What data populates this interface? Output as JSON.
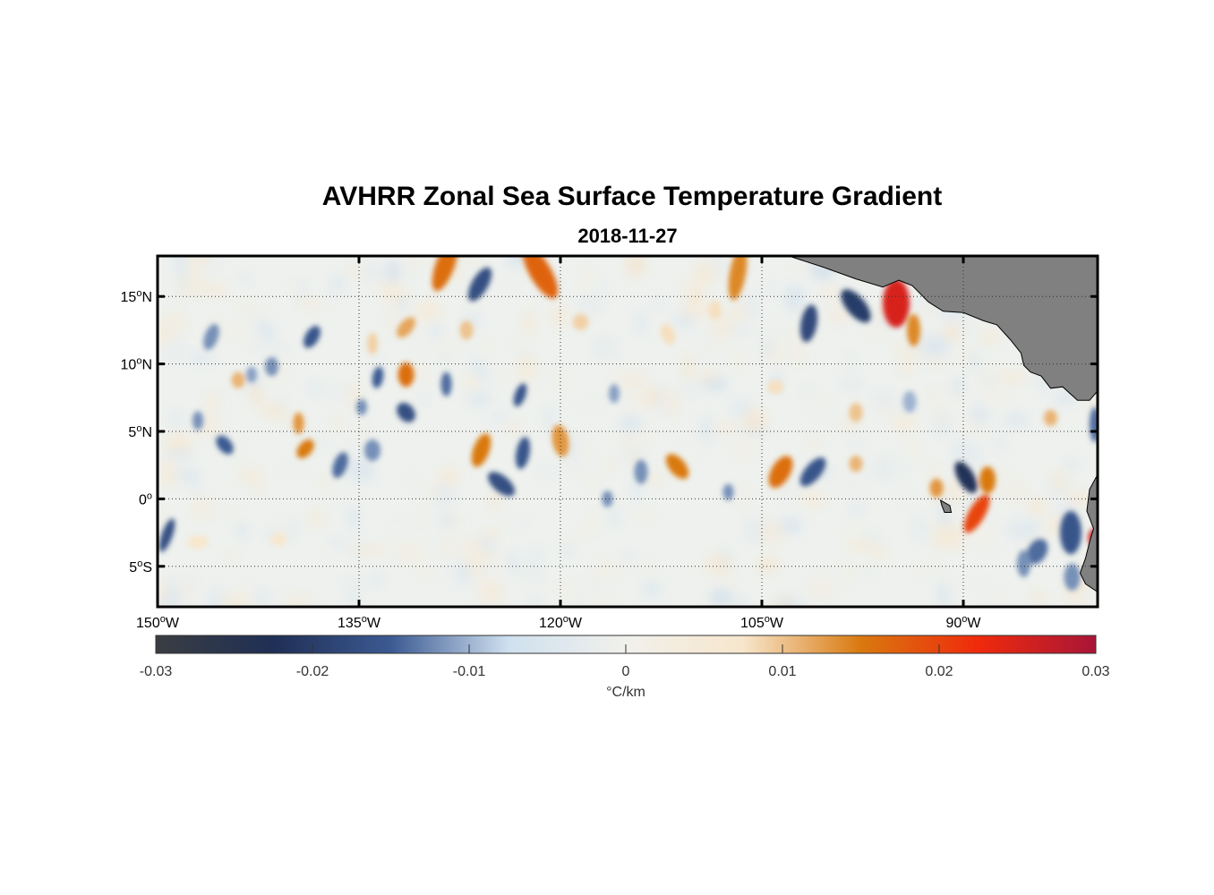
{
  "title": "AVHRR Zonal Sea Surface Temperature Gradient",
  "subtitle": "2018-11-27",
  "chart_data": {
    "type": "heatmap",
    "title": "AVHRR Zonal Sea Surface Temperature Gradient",
    "subtitle": "2018-11-27",
    "xlim": [
      -150,
      -80
    ],
    "ylim": [
      -8,
      18
    ],
    "x_ticks": [
      {
        "value": -150,
        "num": "150",
        "hemi": "W"
      },
      {
        "value": -135,
        "num": "135",
        "hemi": "W"
      },
      {
        "value": -120,
        "num": "120",
        "hemi": "W"
      },
      {
        "value": -105,
        "num": "105",
        "hemi": "W"
      },
      {
        "value": -90,
        "num": "90",
        "hemi": "W"
      }
    ],
    "y_ticks": [
      {
        "value": 15,
        "num": "15",
        "hemi": "N"
      },
      {
        "value": 10,
        "num": "10",
        "hemi": "N"
      },
      {
        "value": 5,
        "num": "5",
        "hemi": "N"
      },
      {
        "value": 0,
        "num": "0",
        "hemi": ""
      },
      {
        "value": -5,
        "num": "5",
        "hemi": "S"
      }
    ],
    "grid": true,
    "colorbar": {
      "range": [
        -0.03,
        0.03
      ],
      "ticks": [
        "-0.03",
        "-0.02",
        "-0.01",
        "0",
        "0.01",
        "0.02",
        "0.03"
      ],
      "tick_values": [
        -0.03,
        -0.02,
        -0.01,
        0,
        0.01,
        0.02,
        0.03
      ],
      "label": "°C/km",
      "colors": [
        "#3a3d42",
        "#1f2f55",
        "#3b5a92",
        "#cfe0ef",
        "#f1f1ec",
        "#f7e6cc",
        "#d9790f",
        "#ef2a0c",
        "#a81538"
      ]
    },
    "land_color": "#808080",
    "features": [
      {
        "lon": -128.6,
        "lat": 17.3,
        "v": 0.016,
        "a": 0.7,
        "b": 2.0,
        "rot": 20
      },
      {
        "lon": -121.5,
        "lat": 16.8,
        "v": 0.017,
        "a": 0.8,
        "b": 2.2,
        "rot": -30
      },
      {
        "lon": -106.8,
        "lat": 16.7,
        "v": 0.014,
        "a": 0.6,
        "b": 2.0,
        "rot": 10
      },
      {
        "lon": -126.0,
        "lat": 15.9,
        "v": -0.017,
        "a": 0.6,
        "b": 1.4,
        "rot": 30
      },
      {
        "lon": -95.0,
        "lat": 14.5,
        "v": 0.025,
        "a": 1.0,
        "b": 1.8,
        "rot": 0
      },
      {
        "lon": -98.0,
        "lat": 14.3,
        "v": -0.02,
        "a": 0.7,
        "b": 1.5,
        "rot": -40
      },
      {
        "lon": -101.5,
        "lat": 13.0,
        "v": -0.018,
        "a": 0.6,
        "b": 1.4,
        "rot": 10
      },
      {
        "lon": -93.7,
        "lat": 12.5,
        "v": 0.014,
        "a": 0.5,
        "b": 1.2,
        "rot": 0
      },
      {
        "lon": -131.5,
        "lat": 12.7,
        "v": 0.012,
        "a": 0.5,
        "b": 0.9,
        "rot": 40
      },
      {
        "lon": -138.5,
        "lat": 12.0,
        "v": -0.016,
        "a": 0.5,
        "b": 0.9,
        "rot": 30
      },
      {
        "lon": -134.0,
        "lat": 11.5,
        "v": 0.009,
        "a": 0.4,
        "b": 0.8,
        "rot": 0
      },
      {
        "lon": -112.0,
        "lat": 12.2,
        "v": 0.008,
        "a": 0.5,
        "b": 0.8,
        "rot": -20
      },
      {
        "lon": -146.0,
        "lat": 12.0,
        "v": -0.012,
        "a": 0.5,
        "b": 1.0,
        "rot": 20
      },
      {
        "lon": -128.5,
        "lat": 8.5,
        "v": -0.014,
        "a": 0.4,
        "b": 0.9,
        "rot": 0
      },
      {
        "lon": -131.5,
        "lat": 9.2,
        "v": 0.016,
        "a": 0.6,
        "b": 0.9,
        "rot": 0
      },
      {
        "lon": -133.6,
        "lat": 9.0,
        "v": -0.015,
        "a": 0.4,
        "b": 0.8,
        "rot": 10
      },
      {
        "lon": -123.0,
        "lat": 7.7,
        "v": -0.016,
        "a": 0.4,
        "b": 0.9,
        "rot": 20
      },
      {
        "lon": -141.5,
        "lat": 9.8,
        "v": -0.012,
        "a": 0.5,
        "b": 0.7,
        "rot": 0
      },
      {
        "lon": -144.0,
        "lat": 8.8,
        "v": 0.011,
        "a": 0.5,
        "b": 0.6,
        "rot": 0
      },
      {
        "lon": -139.5,
        "lat": 5.6,
        "v": 0.013,
        "a": 0.4,
        "b": 0.8,
        "rot": 0
      },
      {
        "lon": -131.5,
        "lat": 6.4,
        "v": -0.017,
        "a": 0.6,
        "b": 0.8,
        "rot": -40
      },
      {
        "lon": -134.8,
        "lat": 6.8,
        "v": -0.012,
        "a": 0.4,
        "b": 0.6,
        "rot": 0
      },
      {
        "lon": -125.9,
        "lat": 3.6,
        "v": 0.015,
        "a": 0.6,
        "b": 1.3,
        "rot": 20
      },
      {
        "lon": -122.8,
        "lat": 3.4,
        "v": -0.016,
        "a": 0.5,
        "b": 1.2,
        "rot": 10
      },
      {
        "lon": -120.0,
        "lat": 4.3,
        "v": 0.013,
        "a": 0.6,
        "b": 1.2,
        "rot": -10
      },
      {
        "lon": -139.0,
        "lat": 3.7,
        "v": 0.015,
        "a": 0.5,
        "b": 0.8,
        "rot": 40
      },
      {
        "lon": -145.0,
        "lat": 4.0,
        "v": -0.015,
        "a": 0.5,
        "b": 0.8,
        "rot": -40
      },
      {
        "lon": -147.0,
        "lat": 5.8,
        "v": -0.012,
        "a": 0.4,
        "b": 0.7,
        "rot": 0
      },
      {
        "lon": -134.0,
        "lat": 3.6,
        "v": -0.012,
        "a": 0.6,
        "b": 0.8,
        "rot": 0
      },
      {
        "lon": -136.4,
        "lat": 2.5,
        "v": -0.014,
        "a": 0.5,
        "b": 1.0,
        "rot": 20
      },
      {
        "lon": -124.4,
        "lat": 1.1,
        "v": -0.017,
        "a": 0.6,
        "b": 1.2,
        "rot": -50
      },
      {
        "lon": -111.3,
        "lat": 2.4,
        "v": 0.015,
        "a": 0.6,
        "b": 1.1,
        "rot": -40
      },
      {
        "lon": -114.0,
        "lat": 2.0,
        "v": -0.012,
        "a": 0.5,
        "b": 0.9,
        "rot": 0
      },
      {
        "lon": -103.6,
        "lat": 2.0,
        "v": 0.016,
        "a": 0.7,
        "b": 1.3,
        "rot": 30
      },
      {
        "lon": -101.2,
        "lat": 2.0,
        "v": -0.016,
        "a": 0.6,
        "b": 1.3,
        "rot": 40
      },
      {
        "lon": -98.0,
        "lat": 2.6,
        "v": 0.011,
        "a": 0.5,
        "b": 0.6,
        "rot": 0
      },
      {
        "lon": -89.8,
        "lat": 1.6,
        "v": -0.022,
        "a": 0.6,
        "b": 1.3,
        "rot": -30
      },
      {
        "lon": -88.2,
        "lat": 1.4,
        "v": 0.015,
        "a": 0.6,
        "b": 1.0,
        "rot": 0
      },
      {
        "lon": -89.0,
        "lat": -1.1,
        "v": 0.02,
        "a": 0.6,
        "b": 1.6,
        "rot": 30
      },
      {
        "lon": -92.0,
        "lat": 0.8,
        "v": 0.013,
        "a": 0.5,
        "b": 0.7,
        "rot": 0
      },
      {
        "lon": -149.3,
        "lat": -2.7,
        "v": -0.017,
        "a": 0.4,
        "b": 1.3,
        "rot": 20
      },
      {
        "lon": -98.0,
        "lat": 6.4,
        "v": 0.01,
        "a": 0.5,
        "b": 0.7,
        "rot": 0
      },
      {
        "lon": -94.0,
        "lat": 7.2,
        "v": -0.01,
        "a": 0.5,
        "b": 0.8,
        "rot": 0
      },
      {
        "lon": -83.5,
        "lat": 6.0,
        "v": 0.011,
        "a": 0.5,
        "b": 0.6,
        "rot": 0
      },
      {
        "lon": -82.0,
        "lat": -2.5,
        "v": -0.016,
        "a": 0.8,
        "b": 1.6,
        "rot": 0
      },
      {
        "lon": -84.5,
        "lat": -3.9,
        "v": -0.014,
        "a": 0.7,
        "b": 1.0,
        "rot": 30
      },
      {
        "lon": -85.5,
        "lat": -4.8,
        "v": -0.012,
        "a": 0.5,
        "b": 1.0,
        "rot": 0
      },
      {
        "lon": -81.9,
        "lat": -5.8,
        "v": -0.012,
        "a": 0.6,
        "b": 1.0,
        "rot": 0
      },
      {
        "lon": -80.2,
        "lat": -2.9,
        "v": 0.026,
        "a": 0.5,
        "b": 0.7,
        "rot": 0
      },
      {
        "lon": -80.2,
        "lat": 5.5,
        "v": -0.014,
        "a": 0.4,
        "b": 1.3,
        "rot": 0
      },
      {
        "lon": -116.5,
        "lat": 0.0,
        "v": -0.012,
        "a": 0.4,
        "b": 0.6,
        "rot": 0
      },
      {
        "lon": -107.5,
        "lat": 0.5,
        "v": -0.012,
        "a": 0.4,
        "b": 0.6,
        "rot": 0
      },
      {
        "lon": -118.5,
        "lat": 13.1,
        "v": 0.009,
        "a": 0.6,
        "b": 0.6,
        "rot": 0
      },
      {
        "lon": -108.5,
        "lat": 14.0,
        "v": 0.008,
        "a": 0.5,
        "b": 0.7,
        "rot": 0
      },
      {
        "lon": -147.0,
        "lat": -3.2,
        "v": 0.007,
        "a": 0.8,
        "b": 0.5,
        "rot": 0
      },
      {
        "lon": -141.0,
        "lat": -3.0,
        "v": 0.007,
        "a": 0.6,
        "b": 0.5,
        "rot": 0
      },
      {
        "lon": -143.0,
        "lat": 9.2,
        "v": -0.011,
        "a": 0.4,
        "b": 0.6,
        "rot": 0
      },
      {
        "lon": -116.0,
        "lat": 7.8,
        "v": -0.011,
        "a": 0.4,
        "b": 0.7,
        "rot": 0
      },
      {
        "lon": -104.0,
        "lat": 8.3,
        "v": 0.008,
        "a": 0.6,
        "b": 0.5,
        "rot": 0
      },
      {
        "lon": -127.0,
        "lat": 12.5,
        "v": 0.01,
        "a": 0.5,
        "b": 0.7,
        "rot": 0
      }
    ],
    "land": [
      [
        [
          -103.0,
          18.0
        ],
        [
          -100.5,
          17.2
        ],
        [
          -98.0,
          16.3
        ],
        [
          -96.0,
          15.7
        ],
        [
          -94.8,
          16.2
        ],
        [
          -93.8,
          15.8
        ],
        [
          -92.6,
          14.6
        ],
        [
          -91.5,
          13.9
        ],
        [
          -90.0,
          13.8
        ],
        [
          -88.5,
          13.2
        ],
        [
          -87.5,
          12.9
        ],
        [
          -86.5,
          11.8
        ],
        [
          -85.7,
          10.8
        ],
        [
          -85.5,
          9.9
        ],
        [
          -85.0,
          9.4
        ],
        [
          -84.2,
          9.1
        ],
        [
          -83.5,
          8.2
        ],
        [
          -82.6,
          8.3
        ],
        [
          -81.5,
          7.3
        ],
        [
          -80.6,
          7.3
        ],
        [
          -80.0,
          8.0
        ],
        [
          -80.0,
          18.0
        ]
      ],
      [
        [
          -91.7,
          -0.1
        ],
        [
          -91.0,
          -0.5
        ],
        [
          -90.9,
          -1.0
        ],
        [
          -91.4,
          -1.0
        ],
        [
          -91.6,
          -0.5
        ]
      ],
      [
        [
          -80.0,
          1.8
        ],
        [
          -80.6,
          0.7
        ],
        [
          -80.8,
          -0.9
        ],
        [
          -80.3,
          -2.2
        ],
        [
          -80.6,
          -3.2
        ],
        [
          -80.9,
          -4.4
        ],
        [
          -81.3,
          -5.5
        ],
        [
          -80.9,
          -6.3
        ],
        [
          -80.0,
          -6.9
        ]
      ]
    ]
  }
}
